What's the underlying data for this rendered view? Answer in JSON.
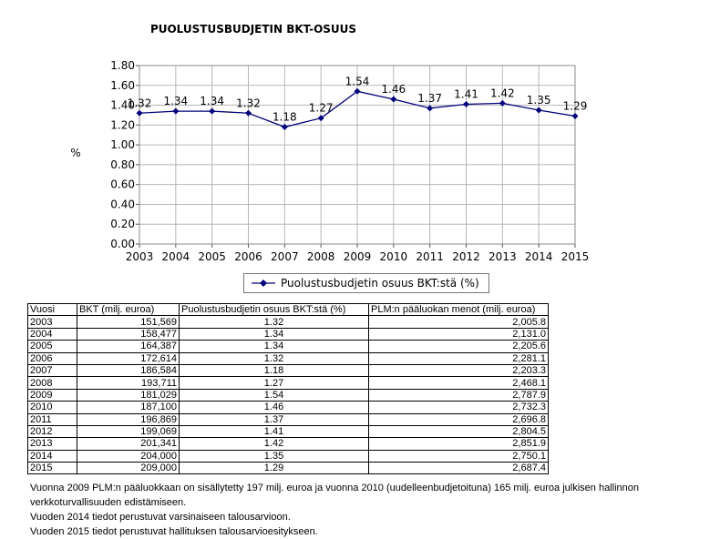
{
  "chart_data": {
    "type": "line",
    "title": "PUOLUSTUSBUDJETIN BKT-OSUUS",
    "ylabel": "%",
    "xlabel": "",
    "ylim": [
      0,
      1.8
    ],
    "yticks": [
      "0.00",
      "0.20",
      "0.40",
      "0.60",
      "0.80",
      "1.00",
      "1.20",
      "1.40",
      "1.60",
      "1.80"
    ],
    "categories": [
      "2003",
      "2004",
      "2005",
      "2006",
      "2007",
      "2008",
      "2009",
      "2010",
      "2011",
      "2012",
      "2013",
      "2014",
      "2015"
    ],
    "series": [
      {
        "name": "Puolustusbudjetin osuus BKT:stä (%)",
        "values": [
          1.32,
          1.34,
          1.34,
          1.32,
          1.18,
          1.27,
          1.54,
          1.46,
          1.37,
          1.41,
          1.42,
          1.35,
          1.29
        ],
        "labels": [
          "1.32",
          "1.34",
          "1.34",
          "1.32",
          "1.18",
          "1.27",
          "1.54",
          "1.46",
          "1.37",
          "1.41",
          "1.42",
          "1.35",
          "1.29"
        ],
        "color": "#00007a"
      }
    ],
    "grid": true,
    "legend": "bottom"
  },
  "table": {
    "headers": [
      "Vuosi",
      "BKT (milj. euroa)",
      "Puolustusbudjetin osuus BKT:stä (%)",
      "PLM:n pääluokan menot (milj. euroa)"
    ],
    "rows": [
      [
        "2003",
        "151,569",
        "1.32",
        "2,005.8"
      ],
      [
        "2004",
        "158,477",
        "1.34",
        "2,131.0"
      ],
      [
        "2005",
        "164,387",
        "1.34",
        "2,205.6"
      ],
      [
        "2006",
        "172,614",
        "1.32",
        "2,281.1"
      ],
      [
        "2007",
        "186,584",
        "1.18",
        "2,203.3"
      ],
      [
        "2008",
        "193,711",
        "1.27",
        "2,468.1"
      ],
      [
        "2009",
        "181,029",
        "1.54",
        "2,787.9"
      ],
      [
        "2010",
        "187,100",
        "1.46",
        "2,732.3"
      ],
      [
        "2011",
        "196,869",
        "1.37",
        "2,696.8"
      ],
      [
        "2012",
        "199,069",
        "1.41",
        "2,804.5"
      ],
      [
        "2013",
        "201,341",
        "1.42",
        "2,851.9"
      ],
      [
        "2014",
        "204,000",
        "1.35",
        "2,750.1"
      ],
      [
        "2015",
        "209,000",
        "1.29",
        "2,687.4"
      ]
    ]
  },
  "notes": [
    "Vuonna 2009 PLM:n pääluokkaan on sisällytetty 197 milj. euroa ja vuonna 2010 (uudelleenbudjetoituna) 165 milj. euroa julkisen hallinnon verkkoturvallisuuden edistämiseen.",
    "Vuoden 2014 tiedot perustuvat varsinaiseen talousarvioon.",
    "Vuoden 2015 tiedot perustuvat hallituksen talousarvioesitykseen."
  ]
}
